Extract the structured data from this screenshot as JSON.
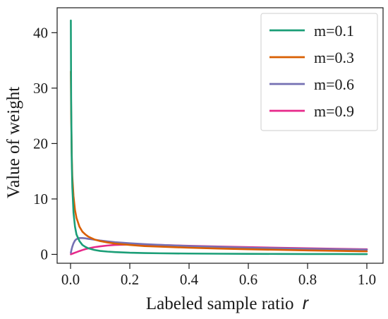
{
  "chart_data": {
    "type": "line",
    "xlabel": "Labeled sample ratio",
    "xlabel_var": "r",
    "ylabel": "Value of weight",
    "xlim": [
      0.0,
      1.0
    ],
    "ylim": [
      -1.6,
      44.5
    ],
    "x_ticks": [
      0.0,
      0.2,
      0.4,
      0.6,
      0.8,
      1.0
    ],
    "x_tick_labels": [
      "0.0",
      "0.2",
      "0.4",
      "0.6",
      "0.8",
      "1.0"
    ],
    "y_ticks": [
      0,
      10,
      20,
      30,
      40
    ],
    "y_tick_labels": [
      "0",
      "10",
      "20",
      "30",
      "40"
    ],
    "grid": false,
    "legend_position": "top-right",
    "x": [
      0.001,
      0.002,
      0.004,
      0.006,
      0.01,
      0.015,
      0.02,
      0.03,
      0.04,
      0.05,
      0.06,
      0.08,
      0.1,
      0.125,
      0.15,
      0.2,
      0.25,
      0.3,
      0.4,
      0.5,
      0.6,
      0.7,
      0.8,
      0.9,
      1.0
    ],
    "series": [
      {
        "name": "m=0.1",
        "color": "#1b9e77",
        "values": [
          42.2,
          28.0,
          17.2,
          12.1,
          7.5,
          5.0,
          3.6,
          2.4,
          1.7,
          1.35,
          1.1,
          0.8,
          0.62,
          0.5,
          0.42,
          0.3,
          0.24,
          0.2,
          0.15,
          0.12,
          0.1,
          0.08,
          0.07,
          0.06,
          0.05
        ]
      },
      {
        "name": "m=0.3",
        "color": "#d95f02",
        "values": [
          33.0,
          26.0,
          18.0,
          14.0,
          10.5,
          8.0,
          6.6,
          5.0,
          4.1,
          3.6,
          3.2,
          2.7,
          2.4,
          2.15,
          1.95,
          1.7,
          1.5,
          1.4,
          1.2,
          1.05,
          0.92,
          0.82,
          0.72,
          0.64,
          0.55
        ]
      },
      {
        "name": "m=0.6",
        "color": "#7570b3",
        "values": [
          0.3,
          0.55,
          1.0,
          1.4,
          2.0,
          2.5,
          2.75,
          2.95,
          2.95,
          2.9,
          2.8,
          2.65,
          2.5,
          2.35,
          2.2,
          2.0,
          1.85,
          1.72,
          1.5,
          1.35,
          1.2,
          1.1,
          1.0,
          0.92,
          0.85
        ]
      },
      {
        "name": "m=0.9",
        "color": "#e7298a",
        "values": [
          0.02,
          0.04,
          0.08,
          0.12,
          0.2,
          0.3,
          0.4,
          0.6,
          0.78,
          0.95,
          1.08,
          1.3,
          1.45,
          1.6,
          1.7,
          1.78,
          1.75,
          1.7,
          1.55,
          1.42,
          1.3,
          1.2,
          1.1,
          1.0,
          0.92
        ]
      }
    ]
  }
}
